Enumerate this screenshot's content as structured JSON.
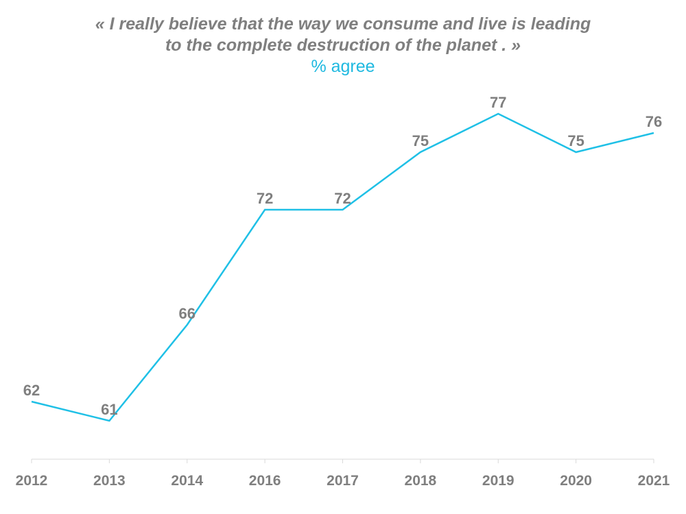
{
  "chart_data": {
    "type": "line",
    "title_line1": "« I really believe that the way we consume and live is leading",
    "title_line2": "to the complete destruction of the planet . »",
    "subtitle": "% agree",
    "categories": [
      "2012",
      "2013",
      "2014",
      "2016",
      "2017",
      "2018",
      "2019",
      "2020",
      "2021"
    ],
    "series": [
      {
        "name": "% agree",
        "values": [
          62,
          61,
          66,
          72,
          72,
          75,
          77,
          75,
          76
        ],
        "data_labels": [
          "62",
          "61",
          "66",
          "72",
          "72",
          "75",
          "77",
          "75",
          "76"
        ]
      }
    ],
    "xlabel": "",
    "ylabel": "",
    "ylim": [
      58,
      80
    ],
    "grid": false,
    "legend": "none",
    "colors": {
      "line": "#1fc0e6",
      "text": "#7f7f7f",
      "subtitle": "#1fb9e0",
      "axis": "#d9d9d9"
    }
  }
}
